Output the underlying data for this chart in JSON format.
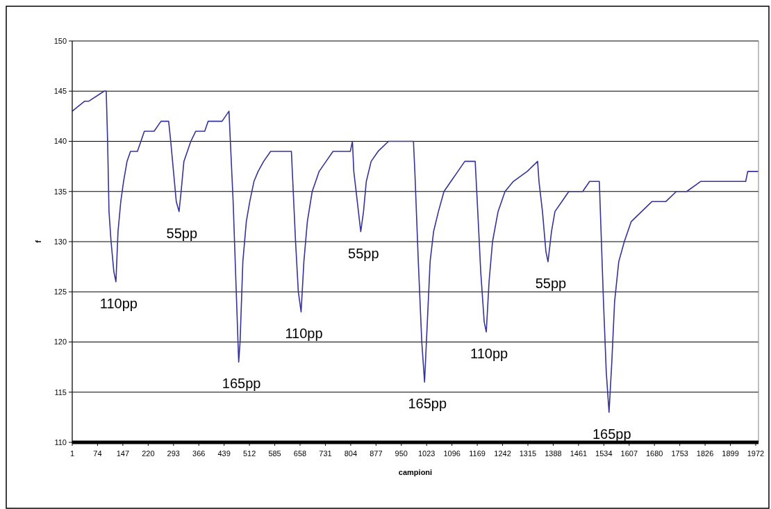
{
  "chart_data": {
    "type": "line",
    "xlabel": "campioni",
    "ylabel": "f",
    "xlim": [
      1,
      1980
    ],
    "xticks": [
      1,
      74,
      147,
      220,
      293,
      366,
      439,
      512,
      585,
      658,
      731,
      804,
      877,
      950,
      1023,
      1096,
      1169,
      1242,
      1315,
      1388,
      1461,
      1534,
      1607,
      1680,
      1753,
      1826,
      1899,
      1972
    ],
    "ylim": [
      110,
      150
    ],
    "yticks": [
      110,
      115,
      120,
      125,
      130,
      135,
      140,
      145,
      150
    ],
    "grid": "y",
    "marker": "none",
    "line_style": "solid",
    "series": [
      {
        "color": "#333399",
        "x": [
          1,
          37,
          49,
          93,
          99,
          103,
          107,
          113,
          121,
          127,
          133,
          141,
          149,
          159,
          169,
          189,
          199,
          209,
          237,
          257,
          279,
          285,
          293,
          301,
          309,
          315,
          323,
          333,
          343,
          357,
          383,
          393,
          433,
          453,
          457,
          465,
          473,
          481,
          485,
          493,
          503,
          513,
          525,
          537,
          553,
          573,
          633,
          637,
          645,
          653,
          661,
          669,
          679,
          693,
          713,
          733,
          753,
          803,
          809,
          813,
          823,
          833,
          841,
          849,
          863,
          883,
          913,
          985,
          989,
          999,
          1009,
          1017,
          1025,
          1033,
          1043,
          1057,
          1073,
          1093,
          1113,
          1133,
          1163,
          1169,
          1179,
          1189,
          1195,
          1203,
          1213,
          1229,
          1249,
          1273,
          1313,
          1343,
          1347,
          1357,
          1367,
          1373,
          1383,
          1393,
          1413,
          1433,
          1473,
          1493,
          1521,
          1525,
          1533,
          1541,
          1549,
          1557,
          1565,
          1577,
          1593,
          1613,
          1643,
          1673,
          1713,
          1743,
          1773,
          1813,
          1883,
          1903,
          1943,
          1949,
          1979
        ],
        "values": [
          143,
          144,
          144,
          145,
          145,
          140,
          133,
          130,
          127,
          126,
          131,
          134,
          136,
          138,
          139,
          139,
          140,
          141,
          141,
          142,
          142,
          140,
          137,
          134,
          133,
          135,
          138,
          139,
          140,
          141,
          141,
          142,
          142,
          143,
          140,
          134,
          126,
          118,
          120,
          128,
          132,
          134,
          136,
          137,
          138,
          139,
          139,
          136,
          130,
          125,
          123,
          128,
          132,
          135,
          137,
          138,
          139,
          139,
          140,
          137,
          134,
          131,
          133,
          136,
          138,
          139,
          140,
          140,
          137,
          128,
          120,
          116,
          122,
          128,
          131,
          133,
          135,
          136,
          137,
          138,
          138,
          134,
          127,
          122,
          121,
          126,
          130,
          133,
          135,
          136,
          137,
          138,
          136,
          133,
          129,
          128,
          131,
          133,
          134,
          135,
          135,
          136,
          136,
          132,
          124,
          117,
          113,
          118,
          124,
          128,
          130,
          132,
          133,
          134,
          134,
          135,
          135,
          136,
          136,
          136,
          136,
          137,
          137
        ]
      }
    ],
    "annotations": [
      {
        "text": "110pp",
        "x": 127,
        "y": 126
      },
      {
        "text": "55pp",
        "x": 309,
        "y": 133
      },
      {
        "text": "165pp",
        "x": 481,
        "y": 118
      },
      {
        "text": "110pp",
        "x": 661,
        "y": 123
      },
      {
        "text": "55pp",
        "x": 833,
        "y": 131
      },
      {
        "text": "165pp",
        "x": 1017,
        "y": 116
      },
      {
        "text": "110pp",
        "x": 1195,
        "y": 121
      },
      {
        "text": "55pp",
        "x": 1373,
        "y": 128
      },
      {
        "text": "165pp",
        "x": 1549,
        "y": 113
      }
    ]
  }
}
